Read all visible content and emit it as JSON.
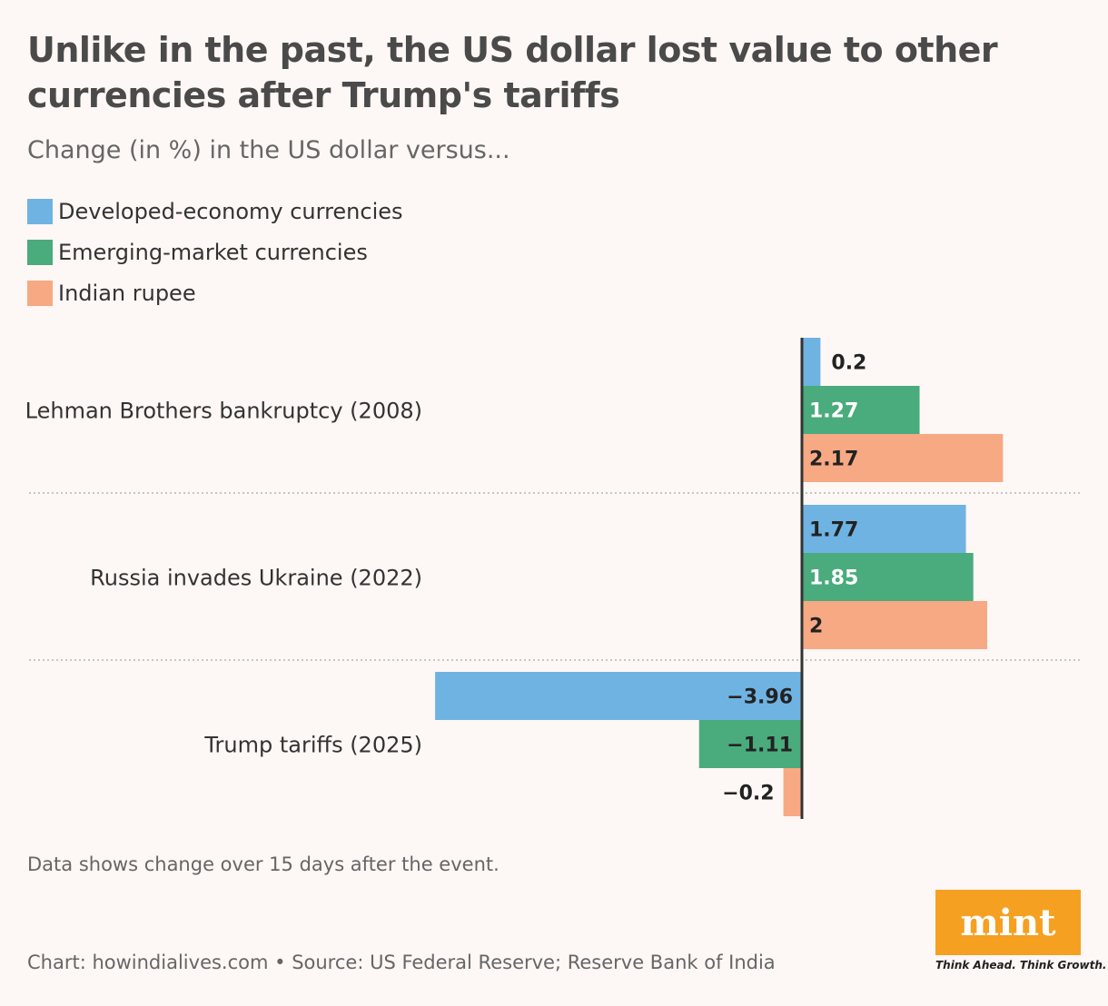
{
  "chart_data": {
    "type": "bar",
    "orientation": "horizontal",
    "title": "Unlike in the past, the US dollar lost value to other currencies after Trump's tariffs",
    "subtitle": "Change (in %) in the US dollar versus...",
    "categories": [
      "Lehman Brothers bankruptcy (2008)",
      "Russia invades Ukraine (2022)",
      "Trump tariffs (2025)"
    ],
    "series": [
      {
        "name": "Developed-economy currencies",
        "color": "#6fb3e3",
        "values": [
          0.2,
          1.77,
          -3.96
        ],
        "labels": [
          "0.2",
          "1.77",
          "−3.96"
        ]
      },
      {
        "name": "Emerging-market currencies",
        "color": "#4aab7d",
        "values": [
          1.27,
          1.85,
          -1.11
        ],
        "labels": [
          "1.27",
          "1.85",
          "−1.11"
        ]
      },
      {
        "name": "Indian rupee",
        "color": "#f7a983",
        "values": [
          2.17,
          2.0,
          -0.2
        ],
        "labels": [
          "2.17",
          "2",
          "−0.2"
        ]
      }
    ],
    "xlim": [
      -4.0,
      3.0
    ],
    "xlabel": "",
    "ylabel": "",
    "grid": false,
    "legend_position": "top-left"
  },
  "note": "Data shows change over 15 days after the event.",
  "source": "Chart: howindialives.com • Source: US Federal Reserve; Reserve Bank of India",
  "logo": {
    "text": "mint",
    "tagline": "Think Ahead. Think Growth.",
    "color": "#f5a021"
  }
}
